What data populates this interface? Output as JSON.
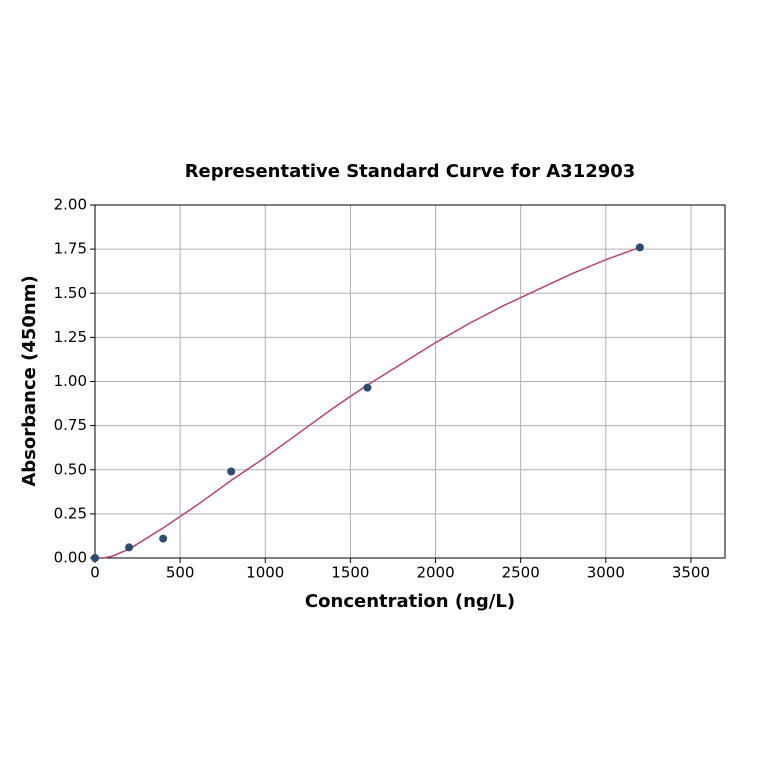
{
  "chart_data": {
    "type": "scatter",
    "title": "Representative Standard Curve for A312903",
    "x_label": "Concentration (ng/L)",
    "y_label": "Absorbance (450nm)",
    "series": [
      {
        "mode": "markers",
        "color": "#2e4a6e",
        "x": [
          0,
          200,
          400,
          800,
          1600,
          3200
        ],
        "values": [
          0.0,
          0.06,
          0.11,
          0.49,
          0.965,
          1.76
        ]
      },
      {
        "mode": "line",
        "color": "#b5446a",
        "x": [
          50,
          100,
          200,
          400,
          600,
          800,
          1000,
          1200,
          1400,
          1600,
          1800,
          2000,
          2200,
          2400,
          2600,
          2800,
          3000,
          3200
        ],
        "values": [
          0.0,
          0.01,
          0.05,
          0.17,
          0.3,
          0.44,
          0.57,
          0.71,
          0.85,
          0.98,
          1.1,
          1.22,
          1.33,
          1.43,
          1.52,
          1.61,
          1.69,
          1.76
        ]
      }
    ],
    "xlim": [
      0,
      3700
    ],
    "xticks": [
      0,
      500,
      1000,
      1500,
      2000,
      2500,
      3000,
      3500
    ],
    "ylim": [
      0,
      2
    ],
    "yticks": [
      {
        "value": 0,
        "label": "0.00"
      },
      {
        "value": 0.25,
        "label": "0.25"
      },
      {
        "value": 0.5,
        "label": "0.50"
      },
      {
        "value": 0.75,
        "label": "0.75"
      },
      {
        "value": 1,
        "label": "1.00"
      },
      {
        "value": 1.25,
        "label": "1.25"
      },
      {
        "value": 1.5,
        "label": "1.50"
      },
      {
        "value": 1.75,
        "label": "1.75"
      },
      {
        "value": 2,
        "label": "2.00"
      }
    ],
    "grid": true
  }
}
